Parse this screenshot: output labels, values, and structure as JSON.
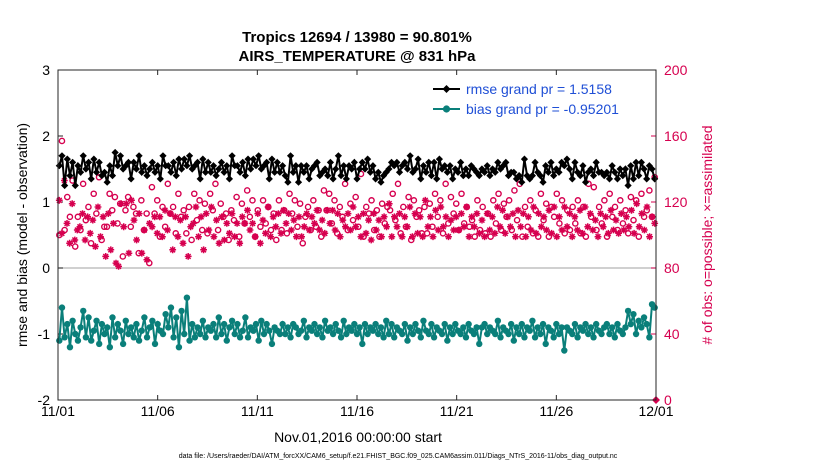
{
  "chart_data": {
    "type": "line",
    "title": "Tropics 12694 / 13980 = 90.801%",
    "subtitle": "AIRS_TEMPERATURE @ 831 hPa",
    "xlabel": "Nov.01,2016 00:00:00 start",
    "ylabel": "rmse and bias (model - observation)",
    "ylabel_right": "# of obs: o=possible; ×=assimilated",
    "xlim": [
      0,
      30
    ],
    "ylim": [
      -2,
      3
    ],
    "ylim_right": [
      0,
      200
    ],
    "x_ticks": [
      0,
      5,
      10,
      15,
      20,
      25,
      30
    ],
    "x_tick_labels": [
      "11/01",
      "11/06",
      "11/11",
      "11/16",
      "11/21",
      "11/26",
      "12/01"
    ],
    "y_ticks": [
      -2,
      -1,
      0,
      1,
      2,
      3
    ],
    "y_tick_labels": [
      "-2",
      "-1",
      "0",
      "1",
      "2",
      "3"
    ],
    "y_right_ticks": [
      0,
      40,
      80,
      120,
      160,
      200
    ],
    "y_right_tick_labels": [
      "0",
      "40",
      "80",
      "120",
      "160",
      "200"
    ],
    "legend_position": "top-right",
    "footnote": "data file: /Users/raeder/DAI/ATM_forcXX/CAM6_setup/f.e21.FHIST_BGC.f09_025.CAM6assim.011/Diags_NTrS_2016-11/obs_diag_output.nc",
    "series": [
      {
        "name": "rmse grand pr = 1.5158",
        "axis": "left",
        "color": "#000000",
        "marker": "filled-diamond",
        "values": [
          1.55,
          1.7,
          1.25,
          1.65,
          1.4,
          1.6,
          1.25,
          1.55,
          1.45,
          1.7,
          1.5,
          1.6,
          1.35,
          1.65,
          1.45,
          1.6,
          1.4,
          1.45,
          1.3,
          1.55,
          1.4,
          1.75,
          1.55,
          1.7,
          1.5,
          1.55,
          1.6,
          1.35,
          1.6,
          1.5,
          1.7,
          1.45,
          1.55,
          1.4,
          1.5,
          1.6,
          1.45,
          1.55,
          1.35,
          1.7,
          1.55,
          1.55,
          1.45,
          1.6,
          1.4,
          1.65,
          1.5,
          1.65,
          1.55,
          1.7,
          1.5,
          1.55,
          1.6,
          1.35,
          1.65,
          1.45,
          1.6,
          1.45,
          1.55,
          1.4,
          1.5,
          1.6,
          1.45,
          1.55,
          1.35,
          1.7,
          1.55,
          1.55,
          1.45,
          1.6,
          1.4,
          1.65,
          1.5,
          1.65,
          1.55,
          1.7,
          1.5,
          1.55,
          1.6,
          1.35,
          1.65,
          1.45,
          1.6,
          1.45,
          1.55,
          1.4,
          1.3,
          1.7,
          1.45,
          1.55,
          1.3,
          1.55,
          1.45,
          1.55,
          1.35,
          1.5,
          1.55,
          1.6,
          1.4,
          1.45,
          1.5,
          1.4,
          1.6,
          1.35,
          1.5,
          1.7,
          1.4,
          1.55,
          1.35,
          1.55,
          1.5,
          1.6,
          1.35,
          1.5,
          1.6,
          1.5,
          1.65,
          1.45,
          1.55,
          1.35,
          1.45,
          1.3,
          1.4,
          1.45,
          1.5,
          1.6,
          1.55,
          1.6,
          1.45,
          1.55,
          1.6,
          1.5,
          1.7,
          1.45,
          1.5,
          1.65,
          1.35,
          1.55,
          1.45,
          1.6,
          1.4,
          1.6,
          1.35,
          1.65,
          1.5,
          1.55,
          1.45,
          1.55,
          1.35,
          1.5,
          1.45,
          1.6,
          1.4,
          1.5,
          1.4,
          1.55,
          1.5,
          1.45,
          1.4,
          1.5,
          1.45,
          1.55,
          1.4,
          1.5,
          1.45,
          1.6,
          1.5,
          1.55,
          1.6,
          1.4,
          1.45,
          1.45,
          1.35,
          1.4,
          1.3,
          1.65,
          1.4,
          1.35,
          1.4,
          1.6,
          1.45,
          1.4,
          1.3,
          1.55,
          1.45,
          1.6,
          1.4,
          1.5,
          1.45,
          1.6,
          1.55,
          1.65,
          1.5,
          1.35,
          1.6,
          1.45,
          1.4,
          1.55,
          1.3,
          1.45,
          1.5,
          1.4,
          1.6,
          1.45,
          1.45,
          1.4,
          1.45,
          1.35,
          1.55,
          1.45,
          1.35,
          1.5,
          1.4,
          1.5,
          1.25,
          1.55,
          1.35,
          1.6,
          1.4,
          1.6,
          1.5,
          1.35,
          1.55,
          1.5,
          1.35
        ]
      },
      {
        "name": "bias grand pr = -0.95201",
        "axis": "left",
        "color": "#0a7f7a",
        "marker": "filled-circle",
        "values": [
          -1.1,
          -0.6,
          -1.05,
          -0.85,
          -1.2,
          -0.8,
          -1.0,
          -1.1,
          -0.9,
          -0.65,
          -1.05,
          -0.75,
          -1.1,
          -0.95,
          -0.8,
          -1.15,
          -0.85,
          -1.0,
          -0.9,
          -1.2,
          -0.75,
          -1.05,
          -0.85,
          -0.95,
          -1.15,
          -0.8,
          -1.0,
          -0.9,
          -1.05,
          -0.85,
          -1.1,
          -0.95,
          -0.75,
          -1.05,
          -0.9,
          -0.8,
          -1.15,
          -0.85,
          -0.95,
          -1.0,
          -0.7,
          -0.9,
          -0.6,
          -1.05,
          -0.75,
          -1.2,
          -0.65,
          -1.0,
          -0.45,
          -1.1,
          -0.85,
          -1.05,
          -0.9,
          -1.0,
          -0.8,
          -1.05,
          -0.9,
          -0.95,
          -0.85,
          -1.05,
          -0.75,
          -1.0,
          -0.85,
          -1.1,
          -0.9,
          -0.8,
          -1.0,
          -0.85,
          -1.05,
          -0.95,
          -0.75,
          -1.05,
          -0.9,
          -0.95,
          -0.85,
          -1.1,
          -0.8,
          -1.0,
          -0.85,
          -0.95,
          -1.15,
          -0.9,
          -0.95,
          -1.0,
          -0.85,
          -1.0,
          -0.9,
          -1.05,
          -0.85,
          -0.9,
          -1.0,
          -0.95,
          -0.8,
          -1.05,
          -0.9,
          -0.95,
          -0.85,
          -1.0,
          -0.9,
          -1.05,
          -0.8,
          -0.95,
          -0.9,
          -1.0,
          -0.85,
          -0.95,
          -1.05,
          -0.8,
          -1.0,
          -0.9,
          -0.95,
          -0.85,
          -1.0,
          -0.9,
          -1.15,
          -0.85,
          -1.0,
          -0.9,
          -0.95,
          -0.85,
          -1.0,
          -0.9,
          -1.05,
          -0.8,
          -1.0,
          -0.85,
          -1.05,
          -0.9,
          -0.95,
          -1.0,
          -0.85,
          -1.1,
          -0.9,
          -1.0,
          -0.85,
          -0.95,
          -1.05,
          -0.8,
          -0.95,
          -1.0,
          -0.85,
          -1.05,
          -0.9,
          -0.95,
          -1.0,
          -0.85,
          -1.1,
          -0.9,
          -1.0,
          -0.85,
          -0.95,
          -1.0,
          -0.9,
          -1.05,
          -0.85,
          -0.95,
          -1.0,
          -0.9,
          -1.15,
          -0.9,
          -0.85,
          -1.0,
          -0.9,
          -0.95,
          -1.0,
          -0.8,
          -1.05,
          -0.9,
          -0.95,
          -1.0,
          -0.85,
          -1.1,
          -0.9,
          -1.0,
          -0.85,
          -1.05,
          -0.9,
          -0.95,
          -0.8,
          -1.05,
          -0.9,
          -1.0,
          -0.85,
          -1.15,
          -0.9,
          -0.95,
          -1.05,
          -0.85,
          -1.0,
          -0.9,
          -1.25,
          -0.9,
          -0.95,
          -1.0,
          -0.85,
          -1.05,
          -0.9,
          -0.95,
          -0.85,
          -1.0,
          -0.9,
          -1.05,
          -0.85,
          -0.95,
          -1.0,
          -0.9,
          -0.85,
          -1.0,
          -0.9,
          -1.05,
          -0.85,
          -0.95,
          -1.0,
          -0.9,
          -0.65,
          -0.85,
          -0.7,
          -1.0,
          -0.8,
          -0.9,
          -0.75,
          -0.85,
          -1.05,
          -0.55,
          -0.6
        ]
      },
      {
        "name": "possible obs",
        "axis": "right",
        "color": "#d6004f",
        "marker": "open-circle",
        "values": [
          100,
          157,
          103,
          123,
          111,
          133,
          93,
          111,
          103,
          131,
          109,
          117,
          95,
          125,
          113,
          135,
          97,
          105,
          105,
          125,
          115,
          123,
          107,
          119,
          87,
          115,
          123,
          105,
          117,
          113,
          89,
          121,
          103,
          113,
          83,
          129,
          113,
          121,
          99,
          117,
          105,
          131,
          113,
          117,
          101,
          125,
          111,
          115,
          101,
          117,
          97,
          125,
          109,
          121,
          103,
          119,
          101,
          125,
          115,
          131,
          103,
          119,
          111,
          113,
          97,
          115,
          109,
          123,
          99,
          119,
          107,
          127,
          111,
          121,
          99,
          115,
          105,
          121,
          107,
          117,
          103,
          113,
          97,
          121,
          103,
          115,
          101,
          125,
          113,
          121,
          105,
          119,
          95,
          111,
          117,
          103,
          121,
          105,
          115,
          99,
          127,
          115,
          125,
          107,
          121,
          101,
          117,
          111,
          131,
          103,
          119,
          109,
          123,
          105,
          137,
          99,
          117,
          113,
          121,
          103,
          115,
          99,
          119,
          107,
          117,
          115,
          125,
          109,
          131,
          101,
          117,
          105,
          123,
          97,
          121,
          111,
          115,
          101,
          117,
          101,
          119,
          105,
          125,
          111,
          121,
          101,
          131,
          107,
          123,
          113,
          119,
          103,
          125,
          107,
          117,
          105,
          109,
          99,
          121,
          103,
          117,
          101,
          113,
          99,
          121,
          107,
          125,
          103,
          119,
          111,
          121,
          103,
          127,
          109,
          131,
          99,
          117,
          105,
          121,
          101,
          115,
          99,
          125,
          109,
          119,
          99,
          117,
          111,
          125,
          107,
          121,
          101,
          115,
          103,
          117,
          107,
          121,
          101,
          117,
          99,
          131,
          111,
          129,
          103,
          117,
          107,
          121,
          99,
          125,
          111,
          117,
          103,
          121,
          107,
          115,
          101,
          123,
          109,
          121,
          99,
          125,
          111,
          115,
          127,
          111,
          135
        ]
      },
      {
        "name": "assimilated obs",
        "axis": "right",
        "color": "#d6004f",
        "marker": "star",
        "values": [
          121,
          101,
          133,
          107,
          95,
          119,
          97,
          103,
          105,
          113,
          97,
          111,
          101,
          109,
          93,
          117,
          99,
          111,
          87,
          113,
          91,
          107,
          83,
          81,
          119,
          105,
          119,
          89,
          121,
          109,
          97,
          113,
          89,
          103,
          85,
          107,
          105,
          111,
          101,
          111,
          99,
          115,
          103,
          113,
          91,
          111,
          99,
          109,
          95,
          111,
          87,
          105,
          107,
          117,
          99,
          111,
          91,
          113,
          103,
          117,
          99,
          109,
          95,
          111,
          97,
          107,
          101,
          113,
          99,
          107,
          95,
          111,
          107,
          115,
          103,
          107,
          99,
          113,
          95,
          109,
          101,
          117,
          99,
          111,
          105,
          113,
          101,
          115,
          107,
          113,
          103,
          109,
          99,
          111,
          99,
          105,
          113,
          103,
          111,
          107,
          115,
          103,
          109,
          101,
          115,
          107,
          115,
          103,
          113,
          99,
          109,
          105,
          113,
          103,
          117,
          105,
          111,
          99,
          113,
          101,
          109,
          97,
          113,
          103,
          109,
          99,
          111,
          105,
          119,
          99,
          111,
          105,
          113,
          99,
          111,
          105,
          117,
          99,
          113,
          101,
          111,
          99,
          121,
          105,
          111,
          99,
          115,
          103,
          117,
          105,
          111,
          99,
          109,
          103,
          111,
          103,
          113,
          105,
          117,
          99,
          111,
          105,
          113,
          101,
          109,
          99,
          113,
          103,
          111,
          101,
          117,
          105,
          115,
          101,
          111,
          105,
          113,
          99,
          115,
          105,
          113,
          99,
          111,
          103,
          117,
          101,
          113,
          105,
          111,
          103,
          115,
          101,
          117,
          99,
          111,
          103,
          117,
          105,
          113,
          99,
          111,
          103,
          115,
          101,
          117,
          105,
          113,
          103,
          109,
          99,
          113,
          105,
          111,
          101,
          115,
          103,
          109,
          101,
          113,
          103,
          111,
          105,
          115,
          101,
          119,
          105,
          113,
          103,
          117,
          99,
          111,
          107
        ]
      }
    ]
  }
}
